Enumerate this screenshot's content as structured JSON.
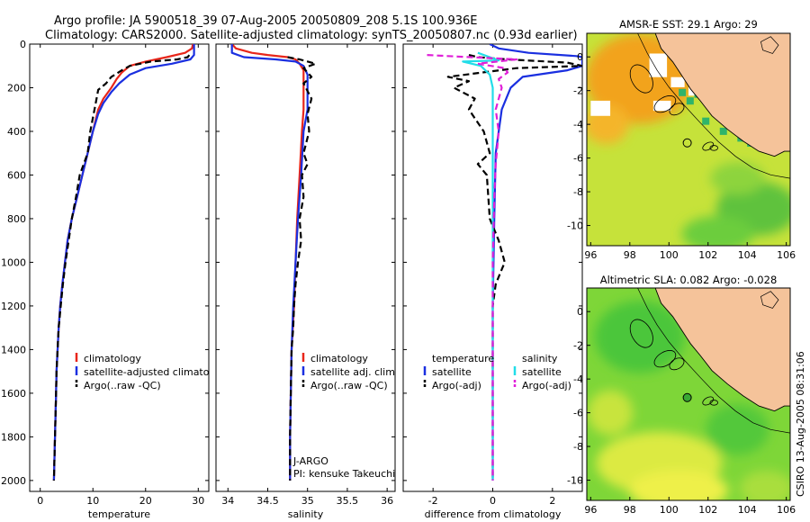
{
  "header": {
    "title_line1": "Argo profile: JA 5900518_39 07-Aug-2005 20050809_208 5.1S 100.936E",
    "title_line2": "Climatology: CARS2000. Satellite-adjusted climatology: synTS_20050807.nc (0.93d earlier)"
  },
  "colors": {
    "climatology": "#e8261a",
    "satellite": "#1a2fe0",
    "argo": "#000000",
    "satellite_salinity": "#22dde8",
    "argo_salinity": "#e020d8",
    "land": "#f5c39a"
  },
  "chart_data": [
    {
      "id": "temperature",
      "type": "line",
      "xlabel": "temperature",
      "ylabel": "",
      "xlim": [
        -2,
        32
      ],
      "ylim": [
        2050,
        0
      ],
      "x_ticks": [
        0,
        10,
        20,
        30
      ],
      "y_ticks": [
        0,
        200,
        400,
        600,
        800,
        1000,
        1200,
        1400,
        1600,
        1800,
        2000
      ],
      "legend": [
        {
          "label": "climatology",
          "color": "#e8261a",
          "dash": "solid"
        },
        {
          "label": "satellite-adjusted climatology",
          "color": "#1a2fe0",
          "dash": "solid"
        },
        {
          "label": "Argo(..raw -QC)",
          "color": "#000000",
          "dash": "dashed"
        }
      ],
      "series": [
        {
          "name": "climatology",
          "color": "#e8261a",
          "dash": "solid",
          "points": [
            [
              29.0,
              0
            ],
            [
              28.8,
              20
            ],
            [
              27.5,
              40
            ],
            [
              24,
              60
            ],
            [
              20,
              80
            ],
            [
              17,
              100
            ],
            [
              15.5,
              130
            ],
            [
              14.5,
              160
            ],
            [
              13.5,
              200
            ],
            [
              12,
              250
            ],
            [
              11,
              300
            ],
            [
              10,
              400
            ],
            [
              9,
              500
            ],
            [
              8,
              600
            ],
            [
              7,
              700
            ],
            [
              6,
              800
            ],
            [
              5.2,
              900
            ],
            [
              4.7,
              1000
            ],
            [
              4.2,
              1100
            ],
            [
              3.8,
              1200
            ],
            [
              3.5,
              1300
            ],
            [
              3.3,
              1400
            ],
            [
              3.1,
              1500
            ],
            [
              3.0,
              1600
            ],
            [
              2.9,
              1700
            ],
            [
              2.8,
              1800
            ],
            [
              2.7,
              1900
            ],
            [
              2.6,
              2000
            ]
          ]
        },
        {
          "name": "satellite-adjusted climatology",
          "color": "#1a2fe0",
          "dash": "solid",
          "points": [
            [
              29.2,
              0
            ],
            [
              29.2,
              50
            ],
            [
              28.5,
              70
            ],
            [
              25,
              90
            ],
            [
              20,
              110
            ],
            [
              17,
              140
            ],
            [
              15,
              180
            ],
            [
              13.5,
              220
            ],
            [
              12,
              270
            ],
            [
              11,
              320
            ],
            [
              10,
              400
            ],
            [
              9,
              500
            ],
            [
              8,
              600
            ],
            [
              7,
              700
            ],
            [
              6,
              800
            ],
            [
              5.2,
              900
            ],
            [
              4.7,
              1000
            ],
            [
              4.2,
              1100
            ],
            [
              3.8,
              1200
            ],
            [
              3.5,
              1300
            ],
            [
              3.3,
              1400
            ],
            [
              3.1,
              1500
            ],
            [
              3.0,
              1600
            ],
            [
              2.9,
              1700
            ],
            [
              2.8,
              1800
            ],
            [
              2.7,
              1900
            ],
            [
              2.6,
              2000
            ]
          ]
        },
        {
          "name": "Argo(..raw -QC)",
          "color": "#000000",
          "dash": "dashed",
          "points": [
            [
              28.3,
              50
            ],
            [
              28.0,
              60
            ],
            [
              26,
              70
            ],
            [
              21,
              80
            ],
            [
              17,
              100
            ],
            [
              15.5,
              120
            ],
            [
              13.5,
              150
            ],
            [
              12.5,
              180
            ],
            [
              11,
              210
            ],
            [
              10.7,
              250
            ],
            [
              10.3,
              300
            ],
            [
              9.5,
              400
            ],
            [
              9.0,
              500
            ],
            [
              7.5,
              600
            ],
            [
              6.8,
              700
            ],
            [
              6.0,
              800
            ],
            [
              5.4,
              900
            ],
            [
              4.8,
              1000
            ],
            [
              4.3,
              1100
            ],
            [
              3.9,
              1200
            ],
            [
              3.5,
              1300
            ],
            [
              3.3,
              1400
            ],
            [
              3.1,
              1500
            ],
            [
              3.0,
              1600
            ],
            [
              2.9,
              1700
            ],
            [
              2.8,
              1800
            ],
            [
              2.7,
              1900
            ],
            [
              2.6,
              2000
            ]
          ]
        }
      ]
    },
    {
      "id": "salinity",
      "type": "line",
      "xlabel": "salinity",
      "ylabel": "",
      "xlim": [
        33.85,
        36.1
      ],
      "ylim": [
        2050,
        0
      ],
      "x_ticks": [
        34,
        34.5,
        35,
        35.5,
        36
      ],
      "x_tick_labels": [
        "34",
        "34.5",
        "35",
        "35.5",
        "36"
      ],
      "legend": [
        {
          "label": "climatology",
          "color": "#e8261a",
          "dash": "solid"
        },
        {
          "label": "satellite adj. clim.",
          "color": "#1a2fe0",
          "dash": "solid"
        },
        {
          "label": "Argo(..raw -QC)",
          "color": "#000000",
          "dash": "dashed"
        }
      ],
      "annotations": [
        "J-ARGO",
        "PI: kensuke Takeuchi"
      ],
      "series": [
        {
          "name": "climatology",
          "color": "#e8261a",
          "dash": "solid",
          "points": [
            [
              34.05,
              0
            ],
            [
              34.1,
              20
            ],
            [
              34.3,
              40
            ],
            [
              34.5,
              50
            ],
            [
              34.75,
              60
            ],
            [
              34.85,
              70
            ],
            [
              34.9,
              90
            ],
            [
              34.95,
              120
            ],
            [
              34.95,
              200
            ],
            [
              34.95,
              300
            ],
            [
              34.93,
              400
            ],
            [
              34.9,
              600
            ],
            [
              34.87,
              800
            ],
            [
              34.85,
              1000
            ],
            [
              34.83,
              1200
            ],
            [
              34.8,
              1400
            ],
            [
              34.79,
              1600
            ],
            [
              34.78,
              1800
            ],
            [
              34.78,
              2000
            ]
          ]
        },
        {
          "name": "satellite adj. clim.",
          "color": "#1a2fe0",
          "dash": "solid",
          "points": [
            [
              34.05,
              0
            ],
            [
              34.05,
              40
            ],
            [
              34.2,
              60
            ],
            [
              34.6,
              70
            ],
            [
              34.85,
              80
            ],
            [
              34.95,
              100
            ],
            [
              35.0,
              140
            ],
            [
              35.0,
              200
            ],
            [
              35.0,
              300
            ],
            [
              34.95,
              400
            ],
            [
              34.92,
              600
            ],
            [
              34.88,
              800
            ],
            [
              34.85,
              1000
            ],
            [
              34.82,
              1200
            ],
            [
              34.8,
              1400
            ],
            [
              34.79,
              1600
            ],
            [
              34.78,
              1800
            ],
            [
              34.78,
              2000
            ]
          ]
        },
        {
          "name": "Argo(..raw -QC)",
          "color": "#000000",
          "dash": "dashed",
          "points": [
            [
              34.75,
              60
            ],
            [
              34.9,
              70
            ],
            [
              35.1,
              90
            ],
            [
              34.95,
              110
            ],
            [
              35.05,
              150
            ],
            [
              34.95,
              180
            ],
            [
              35.05,
              250
            ],
            [
              35.0,
              320
            ],
            [
              35.02,
              400
            ],
            [
              34.95,
              500
            ],
            [
              35.0,
              550
            ],
            [
              34.93,
              600
            ],
            [
              34.95,
              700
            ],
            [
              34.9,
              800
            ],
            [
              34.92,
              900
            ],
            [
              34.88,
              1000
            ],
            [
              34.85,
              1100
            ],
            [
              34.83,
              1200
            ],
            [
              34.82,
              1300
            ],
            [
              34.8,
              1400
            ],
            [
              34.79,
              1600
            ],
            [
              34.78,
              1800
            ],
            [
              34.78,
              2000
            ]
          ]
        }
      ]
    },
    {
      "id": "difference",
      "type": "line",
      "xlabel": "difference from climatology",
      "ylabel": "",
      "xlim": [
        -3.0,
        3.0
      ],
      "ylim": [
        2050,
        0
      ],
      "x_ticks": [
        -2,
        0,
        2
      ],
      "legend": [
        {
          "label": "temperature",
          "color": "",
          "dash": "none"
        },
        {
          "label": "satellite",
          "color": "#1a2fe0",
          "dash": "solid"
        },
        {
          "label": "Argo(-adj)",
          "color": "#000000",
          "dash": "dashed"
        },
        {
          "label": "salinity",
          "color": "",
          "dash": "none"
        },
        {
          "label": "satellite",
          "color": "#22dde8",
          "dash": "solid"
        },
        {
          "label": "Argo(-adj)",
          "color": "#e020d8",
          "dash": "dashed"
        }
      ],
      "series": [
        {
          "name": "temperature satellite",
          "color": "#1a2fe0",
          "dash": "solid",
          "points": [
            [
              -0.1,
              0
            ],
            [
              0.2,
              20
            ],
            [
              1.2,
              40
            ],
            [
              2.8,
              55
            ],
            [
              3.0,
              60
            ],
            [
              3.0,
              100
            ],
            [
              2.5,
              120
            ],
            [
              1.0,
              150
            ],
            [
              0.6,
              200
            ],
            [
              0.3,
              300
            ],
            [
              0.1,
              500
            ],
            [
              0.05,
              800
            ],
            [
              0,
              1200
            ],
            [
              0,
              2000
            ]
          ]
        },
        {
          "name": "temperature Argo(-adj)",
          "color": "#000000",
          "dash": "dashed",
          "points": [
            [
              -0.8,
              50
            ],
            [
              -0.5,
              60
            ],
            [
              0.5,
              70
            ],
            [
              2.5,
              85
            ],
            [
              3.0,
              100
            ],
            [
              0.8,
              110
            ],
            [
              -1.5,
              150
            ],
            [
              -0.8,
              170
            ],
            [
              -1.3,
              200
            ],
            [
              -0.6,
              250
            ],
            [
              -0.8,
              300
            ],
            [
              -0.3,
              400
            ],
            [
              -0.1,
              500
            ],
            [
              -0.5,
              550
            ],
            [
              -0.2,
              600
            ],
            [
              -0.1,
              800
            ],
            [
              0.2,
              900
            ],
            [
              0.4,
              1000
            ],
            [
              0.1,
              1100
            ],
            [
              0,
              1200
            ],
            [
              0,
              2000
            ]
          ]
        },
        {
          "name": "salinity satellite",
          "color": "#22dde8",
          "dash": "solid",
          "points": [
            [
              -0.5,
              40
            ],
            [
              -0.1,
              60
            ],
            [
              0.2,
              75
            ],
            [
              -1.0,
              80
            ],
            [
              -0.4,
              100
            ],
            [
              -0.1,
              140
            ],
            [
              0,
              200
            ],
            [
              0,
              2000
            ]
          ]
        },
        {
          "name": "salinity Argo(-adj)",
          "color": "#e020d8",
          "dash": "dashed",
          "points": [
            [
              -2.2,
              50
            ],
            [
              -1.5,
              55
            ],
            [
              0.8,
              70
            ],
            [
              -0.5,
              90
            ],
            [
              0.4,
              110
            ],
            [
              0.5,
              130
            ],
            [
              0.2,
              160
            ],
            [
              0.3,
              200
            ],
            [
              0.1,
              300
            ],
            [
              0.2,
              400
            ],
            [
              0.1,
              550
            ],
            [
              0.05,
              700
            ],
            [
              0,
              1000
            ],
            [
              0,
              2000
            ]
          ]
        }
      ]
    }
  ],
  "maps": [
    {
      "id": "sst-map",
      "title": "AMSR-E SST: 29.1 Argo: 29",
      "xlim": [
        95.8,
        106.2
      ],
      "ylim": [
        -11.2,
        1.4
      ],
      "x_ticks": [
        96,
        98,
        100,
        102,
        104,
        106
      ],
      "y_ticks": [
        0,
        -2,
        -4,
        -6,
        -8,
        -10
      ],
      "argo_marker": {
        "lon": 100.936,
        "lat": -5.1
      },
      "argo_marker_color": "none"
    },
    {
      "id": "sla-map",
      "title": "Altimetric SLA: 0.082 Argo: -0.028",
      "xlim": [
        95.8,
        106.2
      ],
      "ylim": [
        -11.2,
        1.4
      ],
      "x_ticks": [
        96,
        98,
        100,
        102,
        104,
        106
      ],
      "y_ticks": [
        0,
        -2,
        -4,
        -6,
        -8,
        -10
      ],
      "argo_marker": {
        "lon": 100.936,
        "lat": -5.1
      },
      "argo_marker_color": "#3aa834"
    }
  ],
  "side_label": "CSIRO 13-Aug-2005 08:31:06"
}
